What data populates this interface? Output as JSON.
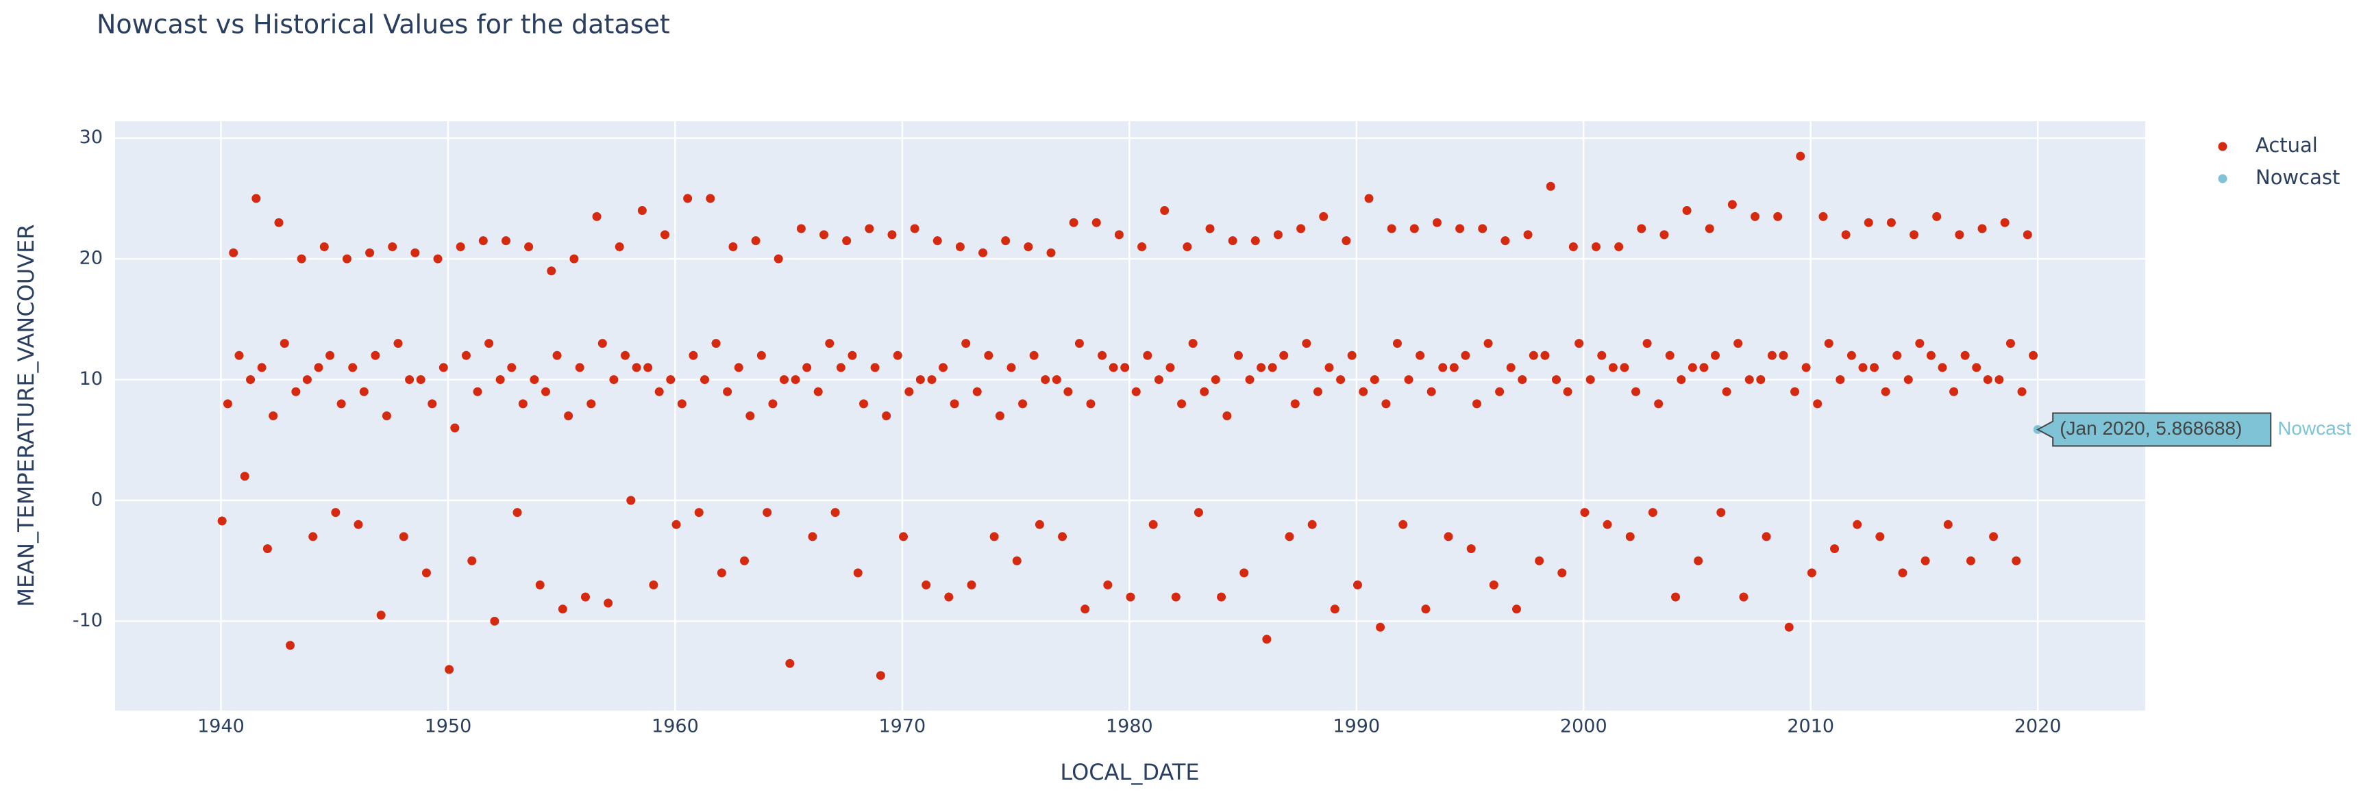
{
  "chart_data": {
    "type": "scatter",
    "title": "Nowcast vs Historical Values for the dataset",
    "x_label": "LOCAL_DATE",
    "y_label": "MEAN_TEMPERATURE_VANCOUVER",
    "xlim": [
      1935.34,
      2024.73
    ],
    "ylim": [
      -17.4,
      31.4
    ],
    "xticks": [
      1940,
      1950,
      1960,
      1970,
      1980,
      1990,
      2000,
      2010,
      2020
    ],
    "yticks": [
      -10,
      0,
      10,
      20,
      30
    ],
    "grid": true,
    "legend": "top-right",
    "hover_label": "(Jan 2020, 5.868688)",
    "series": [
      {
        "name": "Actual",
        "color": "#d62a10",
        "x": [
          1940.05,
          1940.3,
          1940.55,
          1940.8,
          1941.05,
          1941.3,
          1941.55,
          1941.8,
          1942.05,
          1942.3,
          1942.55,
          1942.8,
          1943.05,
          1943.3,
          1943.55,
          1943.8,
          1944.05,
          1944.3,
          1944.55,
          1944.8,
          1945.05,
          1945.3,
          1945.55,
          1945.8,
          1946.05,
          1946.3,
          1946.55,
          1946.8,
          1947.05,
          1947.3,
          1947.55,
          1947.8,
          1948.05,
          1948.3,
          1948.55,
          1948.8,
          1949.05,
          1949.3,
          1949.55,
          1949.8,
          1950.05,
          1950.3,
          1950.55,
          1950.8,
          1951.05,
          1951.3,
          1951.55,
          1951.8,
          1952.05,
          1952.3,
          1952.55,
          1952.8,
          1953.05,
          1953.3,
          1953.55,
          1953.8,
          1954.05,
          1954.3,
          1954.55,
          1954.8,
          1955.05,
          1955.3,
          1955.55,
          1955.8,
          1956.05,
          1956.3,
          1956.55,
          1956.8,
          1957.05,
          1957.3,
          1957.55,
          1957.8,
          1958.05,
          1958.3,
          1958.55,
          1958.8,
          1959.05,
          1959.3,
          1959.55,
          1959.8,
          1960.05,
          1960.3,
          1960.55,
          1960.8,
          1961.05,
          1961.3,
          1961.55,
          1961.8,
          1962.05,
          1962.3,
          1962.55,
          1962.8,
          1963.05,
          1963.3,
          1963.55,
          1963.8,
          1964.05,
          1964.3,
          1964.55,
          1964.8,
          1965.05,
          1965.3,
          1965.55,
          1965.8,
          1966.05,
          1966.3,
          1966.55,
          1966.8,
          1967.05,
          1967.3,
          1967.55,
          1967.8,
          1968.05,
          1968.3,
          1968.55,
          1968.8,
          1969.05,
          1969.3,
          1969.55,
          1969.8,
          1970.05,
          1970.3,
          1970.55,
          1970.8,
          1971.05,
          1971.3,
          1971.55,
          1971.8,
          1972.05,
          1972.3,
          1972.55,
          1972.8,
          1973.05,
          1973.3,
          1973.55,
          1973.8,
          1974.05,
          1974.3,
          1974.55,
          1974.8,
          1975.05,
          1975.3,
          1975.55,
          1975.8,
          1976.05,
          1976.3,
          1976.55,
          1976.8,
          1977.05,
          1977.3,
          1977.55,
          1977.8,
          1978.05,
          1978.3,
          1978.55,
          1978.8,
          1979.05,
          1979.3,
          1979.55,
          1979.8,
          1980.05,
          1980.3,
          1980.55,
          1980.8,
          1981.05,
          1981.3,
          1981.55,
          1981.8,
          1982.05,
          1982.3,
          1982.55,
          1982.8,
          1983.05,
          1983.3,
          1983.55,
          1983.8,
          1984.05,
          1984.3,
          1984.55,
          1984.8,
          1985.05,
          1985.3,
          1985.55,
          1985.8,
          1986.05,
          1986.3,
          1986.55,
          1986.8,
          1987.05,
          1987.3,
          1987.55,
          1987.8,
          1988.05,
          1988.3,
          1988.55,
          1988.8,
          1989.05,
          1989.3,
          1989.55,
          1989.8,
          1990.05,
          1990.3,
          1990.55,
          1990.8,
          1991.05,
          1991.3,
          1991.55,
          1991.8,
          1992.05,
          1992.3,
          1992.55,
          1992.8,
          1993.05,
          1993.3,
          1993.55,
          1993.8,
          1994.05,
          1994.3,
          1994.55,
          1994.8,
          1995.05,
          1995.3,
          1995.55,
          1995.8,
          1996.05,
          1996.3,
          1996.55,
          1996.8,
          1997.05,
          1997.3,
          1997.55,
          1997.8,
          1998.05,
          1998.3,
          1998.55,
          1998.8,
          1999.05,
          1999.3,
          1999.55,
          1999.8,
          2000.05,
          2000.3,
          2000.55,
          2000.8,
          2001.05,
          2001.3,
          2001.55,
          2001.8,
          2002.05,
          2002.3,
          2002.55,
          2002.8,
          2003.05,
          2003.3,
          2003.55,
          2003.8,
          2004.05,
          2004.3,
          2004.55,
          2004.8,
          2005.05,
          2005.3,
          2005.55,
          2005.8,
          2006.05,
          2006.3,
          2006.55,
          2006.8,
          2007.05,
          2007.3,
          2007.55,
          2007.8,
          2008.05,
          2008.3,
          2008.55,
          2008.8,
          2009.05,
          2009.3,
          2009.55,
          2009.8,
          2010.05,
          2010.3,
          2010.55,
          2010.8,
          2011.05,
          2011.3,
          2011.55,
          2011.8,
          2012.05,
          2012.3,
          2012.55,
          2012.8,
          2013.05,
          2013.3,
          2013.55,
          2013.8,
          2014.05,
          2014.3,
          2014.55,
          2014.8,
          2015.05,
          2015.3,
          2015.55,
          2015.8,
          2016.05,
          2016.3,
          2016.55,
          2016.8,
          2017.05,
          2017.3,
          2017.55,
          2017.8,
          2018.05,
          2018.3,
          2018.55,
          2018.8,
          2019.05,
          2019.3,
          2019.55,
          2019.8
        ],
        "values": [
          -1.7,
          8,
          20.5,
          12,
          2,
          10,
          25,
          11,
          -4,
          7,
          23,
          13,
          -12,
          9,
          20,
          10,
          -3,
          11,
          21,
          12,
          -1,
          8,
          20,
          11,
          -2,
          9,
          20.5,
          12,
          -9.5,
          7,
          21,
          13,
          -3,
          10,
          20.5,
          10,
          -6,
          8,
          20,
          11,
          -14,
          6,
          21,
          12,
          -5,
          9,
          21.5,
          13,
          -10,
          10,
          21.5,
          11,
          -1,
          8,
          21,
          10,
          -7,
          9,
          19,
          12,
          -9,
          7,
          20,
          11,
          -8,
          8,
          23.5,
          13,
          -8.5,
          10,
          21,
          12,
          0,
          11,
          24,
          11,
          -7,
          9,
          22,
          10,
          -2,
          8,
          25,
          12,
          -1,
          10,
          25,
          13,
          -6,
          9,
          21,
          11,
          -5,
          7,
          21.5,
          12,
          -1,
          8,
          20,
          10,
          -13.5,
          10,
          22.5,
          11,
          -3,
          9,
          22,
          13,
          -1,
          11,
          21.5,
          12,
          -6,
          8,
          22.5,
          11,
          -14.5,
          7,
          22,
          12,
          -3,
          9,
          22.5,
          10,
          -7,
          10,
          21.5,
          11,
          -8,
          8,
          21,
          13,
          -7,
          9,
          20.5,
          12,
          -3,
          7,
          21.5,
          11,
          -5,
          8,
          21,
          12,
          -2,
          10,
          20.5,
          10,
          -3,
          9,
          23,
          13,
          -9,
          8,
          23,
          12,
          -7,
          11,
          22,
          11,
          -8,
          9,
          21,
          12,
          -2,
          10,
          24,
          11,
          -8,
          8,
          21,
          13,
          -1,
          9,
          22.5,
          10,
          -8,
          7,
          21.5,
          12,
          -6,
          10,
          21.5,
          11,
          -11.5,
          11,
          22,
          12,
          -3,
          8,
          22.5,
          13,
          -2,
          9,
          23.5,
          11,
          -9,
          10,
          21.5,
          12,
          -7,
          9,
          25,
          10,
          -10.5,
          8,
          22.5,
          13,
          -2,
          10,
          22.5,
          12,
          -9,
          9,
          23,
          11,
          -3,
          11,
          22.5,
          12,
          -4,
          8,
          22.5,
          13,
          -7,
          9,
          21.5,
          11,
          -9,
          10,
          22,
          12,
          -5,
          12,
          26,
          10,
          -6,
          9,
          21,
          13,
          -1,
          10,
          21,
          12,
          -2,
          11,
          21,
          11,
          -3,
          9,
          22.5,
          13,
          -1,
          8,
          22,
          12,
          -8,
          10,
          24,
          11,
          -5,
          11,
          22.5,
          12,
          -1,
          9,
          24.5,
          13,
          -8,
          10,
          23.5,
          10,
          -3,
          12,
          23.5,
          12,
          -10.5,
          9,
          28.5,
          11,
          -6,
          8,
          23.5,
          13,
          -4,
          10,
          22,
          12,
          -2,
          11,
          23,
          11,
          -3,
          9,
          23,
          12,
          -6,
          10,
          22,
          13,
          -5,
          12,
          23.5,
          11,
          -2,
          9,
          22,
          12,
          -5,
          11,
          22.5,
          10,
          -3,
          10,
          23,
          13,
          -5,
          9,
          22,
          12
        ]
      },
      {
        "name": "Nowcast",
        "color": "#7ec4d6",
        "x": [
          2020.0
        ],
        "values": [
          5.868688
        ]
      }
    ]
  }
}
